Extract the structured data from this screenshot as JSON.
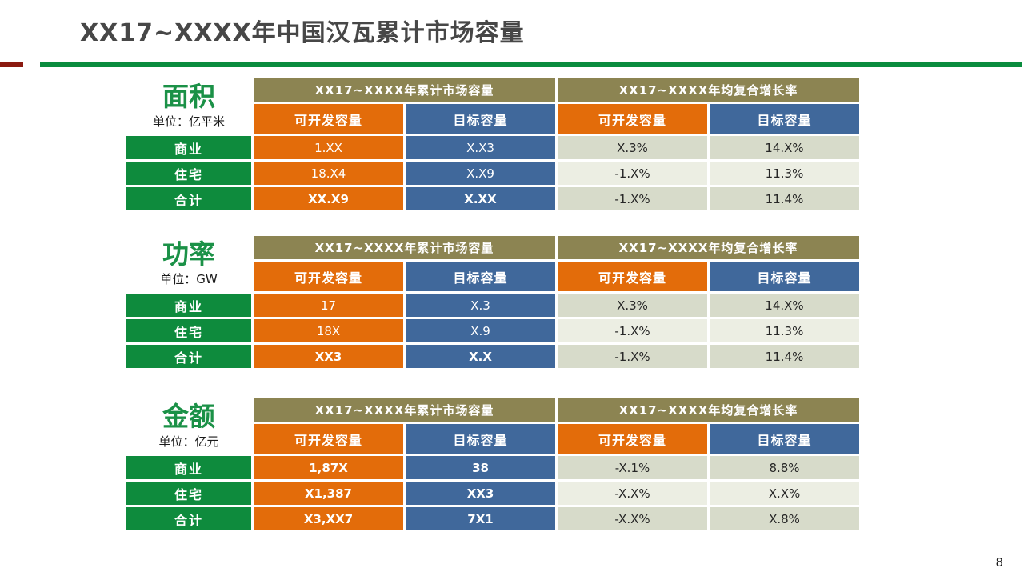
{
  "slide": {
    "title": "XX17~XXXX年中国汉瓦累计市场容量",
    "page_number": "8",
    "colors": {
      "accent_green_rule": "#0A8C3E",
      "accent_red_dash": "#8B1A10",
      "group_header_olive": "#8C8452",
      "developable_orange": "#E36C0A",
      "target_blue": "#40689B",
      "row_label_green": "#0E8B3D",
      "section_title_green": "#1B9147",
      "light_cell_a": "#D7DBCA",
      "light_cell_b": "#ECEEE3"
    }
  },
  "sections": [
    {
      "title": "面积",
      "unit": "单位：亿平米",
      "group_headers": [
        "XX17~XXXX年累计市场容量",
        "XX17~XXXX年均复合增长率"
      ],
      "col_headers": [
        "可开发容量",
        "目标容量",
        "可开发容量",
        "目标容量"
      ],
      "rows": [
        {
          "label": "商业",
          "values": [
            "1.XX",
            "X.X3",
            "X.3%",
            "14.X%"
          ]
        },
        {
          "label": "住宅",
          "values": [
            "18.X4",
            "X.X9",
            "-1.X%",
            "11.3%"
          ]
        },
        {
          "label": "合计",
          "values": [
            "XX.X9",
            "X.XX",
            "-1.X%",
            "11.4%"
          ]
        }
      ]
    },
    {
      "title": "功率",
      "unit": "单位：GW",
      "group_headers": [
        "XX17~XXXX年累计市场容量",
        "XX17~XXXX年均复合增长率"
      ],
      "col_headers": [
        "可开发容量",
        "目标容量",
        "可开发容量",
        "目标容量"
      ],
      "rows": [
        {
          "label": "商业",
          "values": [
            "17",
            "X.3",
            "X.3%",
            "14.X%"
          ]
        },
        {
          "label": "住宅",
          "values": [
            "18X",
            "X.9",
            "-1.X%",
            "11.3%"
          ]
        },
        {
          "label": "合计",
          "values": [
            "XX3",
            "X.X",
            "-1.X%",
            "11.4%"
          ]
        }
      ]
    },
    {
      "title": "金额",
      "unit": "单位：亿元",
      "group_headers": [
        "XX17~XXXX年累计市场容量",
        "XX17~XXXX年均复合增长率"
      ],
      "col_headers": [
        "可开发容量",
        "目标容量",
        "可开发容量",
        "目标容量"
      ],
      "rows": [
        {
          "label": "商业",
          "values": [
            "1,87X",
            "38",
            "-X.1%",
            "8.8%"
          ]
        },
        {
          "label": "住宅",
          "values": [
            "X1,387",
            "XX3",
            "-X.X%",
            "X.X%"
          ]
        },
        {
          "label": "合计",
          "values": [
            "X3,XX7",
            "7X1",
            "-X.X%",
            "X.8%"
          ]
        }
      ]
    }
  ]
}
